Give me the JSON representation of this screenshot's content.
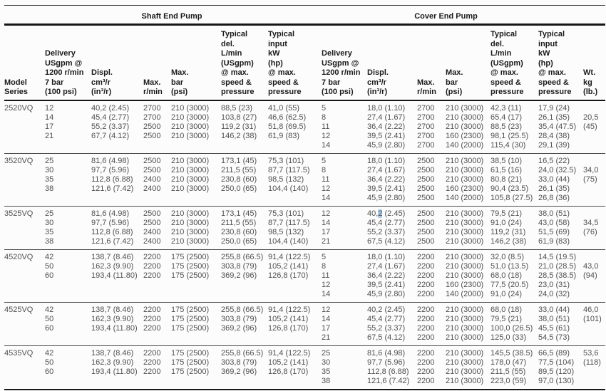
{
  "table": {
    "section_titles": [
      "Shaft End Pump",
      "Cover End Pump"
    ],
    "columns": [
      "Model\nSeries",
      "Delivery\nUSgpm @\n1200 r/min\n7 bar\n(100 psi)",
      "Displ.\ncm³/r\n(in³/r)",
      "Max.\nr/min",
      "Max.\nbar\n(psi)",
      "Typical\ndel.\nL/min\n(USgpm)\n@ max.\nspeed &\npressure",
      "Typical\ninput\nkW\n(hp)\n@ max.\nspeed &\npressure",
      "Delivery\nUSgpm @\n1200 r/min\n7 bar\n(100 psi)",
      "Displ.\ncm³/r\n(in³/r)",
      "Max.\nr/min",
      "Max.\nbar\n(psi)",
      "Typical\ndel.\nL/min\n(USgpm)\n@ max.\nspeed &\npressure",
      "Typical\ninput\nkW\n(hp)\n@ max.\nspeed &\npressure",
      "Wt.\nkg\n(lb.)"
    ],
    "blocks": [
      {
        "model": "2520VQ",
        "rows": [
          [
            "2520VQ",
            "12",
            "40,2 (2.45)",
            "2700",
            "210 (3000)",
            "88,5 (23)",
            "41,0 (55)",
            "5",
            "18,0 (1.10)",
            "2700",
            "210 (3000)",
            "42,3 (11)",
            "17,9 (24)",
            ""
          ],
          [
            "",
            "14",
            "45,4 (2.77)",
            "2700",
            "210 (3000)",
            "103,8 (27)",
            "46,6 (62.5)",
            "8",
            "27,4 (1.67)",
            "2700",
            "210 (3000)",
            "65,4 (17)",
            "26,1 (35)",
            "20,5"
          ],
          [
            "",
            "17",
            "55,2 (3.37)",
            "2500",
            "210 (3000)",
            "119,2 (31)",
            "51,8 (69.5)",
            "11",
            "36,4 (2.22)",
            "2700",
            "210 (3000)",
            "88,5 (23)",
            "35,4 (47.5)",
            "(45)"
          ],
          [
            "",
            "21",
            "67,7 (4.12)",
            "2500",
            "210 (3000)",
            "146,2 (38)",
            "61,9 (83)",
            "12",
            "39,5 (2.41)",
            "2700",
            "160 (2300)",
            "98,1 (25.5)",
            "28,4 (38)",
            ""
          ],
          [
            "",
            "",
            "",
            "",
            "",
            "",
            "",
            "14",
            "45,9 (2.80)",
            "2700",
            "140 (2000)",
            "115,4 (30)",
            "29,1 (39)",
            ""
          ]
        ]
      },
      {
        "model": "3520VQ",
        "rows": [
          [
            "3520VQ",
            "25",
            "81,6 (4.98)",
            "2500",
            "210 (3000)",
            "173,1 (45)",
            "75,3 (101)",
            "5",
            "18,0 (1.10)",
            "2500",
            "210 (3000)",
            "38,5 (10)",
            "16,5 (22)",
            ""
          ],
          [
            "",
            "30",
            "97,7 (5.96)",
            "2500",
            "210 (3000)",
            "211,5 (55)",
            "87,7 (117.5)",
            "8",
            "27,4 (1.67)",
            "2500",
            "210 (3000)",
            "61,5 (16)",
            "24,0 (32.5)",
            "34,0"
          ],
          [
            "",
            "35",
            "112,8 (6.88)",
            "2400",
            "210 (3000)",
            "230,8 (60)",
            "98,5 (132)",
            "11",
            "36,4 (2.22)",
            "2500",
            "210 (3000)",
            "80,8 (21)",
            "33,0 (44)",
            "(75)"
          ],
          [
            "",
            "38",
            "121,6 (7.42)",
            "2400",
            "210 (3000)",
            "250,0 (65)",
            "104,4 (140)",
            "12",
            "39,5 (2.41)",
            "2500",
            "160 (2300)",
            "90,4 (23.5)",
            "26,1 (35)",
            ""
          ],
          [
            "",
            "",
            "",
            "",
            "",
            "",
            "",
            "14",
            "45,9 (2.80)",
            "2500",
            "140 (2000)",
            "105,8 (27.5)",
            "26,8 (36)",
            ""
          ]
        ]
      },
      {
        "model": "3525VQ",
        "rows": [
          [
            "3525VQ",
            "25",
            "81,6 (4.98)",
            "2500",
            "210 (3000)",
            "173,1 (45)",
            "75,3 (101)",
            "12",
            "40,2 (2.45)",
            "2500",
            "210 (3000)",
            "79,5 (21)",
            "38,0 (51)",
            ""
          ],
          [
            "",
            "30",
            "97,7 (5.96)",
            "2500",
            "210 (3000)",
            "211,5 (55)",
            "87,7 (117.5)",
            "14",
            "45,4 (2.77)",
            "2500",
            "210 (3000)",
            "91,0 (24)",
            "43,0 (58)",
            "34,5"
          ],
          [
            "",
            "35",
            "112,8 (6.88)",
            "2400",
            "210 (3000)",
            "230,8 (60)",
            "98,5 (132)",
            "17",
            "55,2 (3.37)",
            "2500",
            "210 (3000)",
            "119,2 (31)",
            "51,5 (69)",
            "(76)"
          ],
          [
            "",
            "38",
            "121,6 (7.42)",
            "2400",
            "210 (3000)",
            "250,0 (65)",
            "104,4 (140)",
            "21",
            "67,5 (4.12)",
            "2500",
            "210 (3000)",
            "146,2 (38)",
            "61,9 (83)",
            ""
          ]
        ]
      },
      {
        "model": "4520VQ",
        "rows": [
          [
            "4520VQ",
            "42",
            "138,7 (8.46)",
            "2200",
            "175 (2500)",
            "255,8 (66.5)",
            "91,4 (122.5)",
            "5",
            "18,0 (1.10)",
            "2200",
            "210 (3000)",
            "32,0 (8.5)",
            "14,5 (19.5)",
            ""
          ],
          [
            "",
            "50",
            "162,3 (9.90)",
            "2200",
            "175 (2500)",
            "303,8 (79)",
            "105,2 (141)",
            "8",
            "27,4 (1.67)",
            "2200",
            "210 (3000)",
            "51,0 (13.5)",
            "21,0 (28.5)",
            "43,0"
          ],
          [
            "",
            "60",
            "193,4 (11.80)",
            "2200",
            "175 (2500)",
            "369,2 (96)",
            "126,8 (170)",
            "11",
            "36,4 (2.22)",
            "2200",
            "210 (3000)",
            "68,0 (18)",
            "28,5 (38.5)",
            "(94)"
          ],
          [
            "",
            "",
            "",
            "",
            "",
            "",
            "",
            "12",
            "39,5 (2.41)",
            "2200",
            "160 (2300)",
            "77,5 (20.5)",
            "23,0 (31)",
            ""
          ],
          [
            "",
            "",
            "",
            "",
            "",
            "",
            "",
            "14",
            "45,9 (2.80)",
            "2200",
            "140 (2000)",
            "91,0 (24)",
            "24,0 (32)",
            ""
          ]
        ]
      },
      {
        "model": "4525VQ",
        "rows": [
          [
            "4525VQ",
            "42",
            "138,7 (8.46)",
            "2200",
            "175 (2500)",
            "255,8 (66.5)",
            "91,4 (122.5)",
            "12",
            "40,2 (2.45)",
            "2200",
            "210 (3000)",
            "68,0 (18)",
            "33,0 (44)",
            "46,0"
          ],
          [
            "",
            "50",
            "162,3 (9.90)",
            "2200",
            "175 (2500)",
            "303,8 (79)",
            "105,2 (141)",
            "14",
            "45,4 (2.77)",
            "2200",
            "210 (3000)",
            "79,5 (21)",
            "38,0 (51)",
            "(101)"
          ],
          [
            "",
            "60",
            "193,4 (11.80)",
            "2200",
            "175 (2500)",
            "369,2 (96)",
            "126,8 (170)",
            "17",
            "55,2 (3.37)",
            "2200",
            "210 (3000)",
            "100,0 (26.5)",
            "45,5 (61)",
            ""
          ],
          [
            "",
            "",
            "",
            "",
            "",
            "",
            "",
            "21",
            "67,5 (4.12)",
            "2200",
            "210 (3000)",
            "125,0 (33)",
            "54,5 (73)",
            ""
          ]
        ]
      },
      {
        "model": "4535VQ",
        "rows": [
          [
            "4535VQ",
            "42",
            "138,7 (8.46)",
            "2200",
            "175 (2500)",
            "255,8 (66.5)",
            "91,4 (122.5)",
            "25",
            "81,6 (4.98)",
            "2200",
            "210 (3000)",
            "145,5 (38.5)",
            "66,5 (89)",
            "53,6"
          ],
          [
            "",
            "50",
            "162,3 (9.90)",
            "2200",
            "175 (2500)",
            "303,8 (79)",
            "105,2 (141)",
            "30",
            "97,7 (5.96)",
            "2200",
            "210 (3000)",
            "178,0 (47)",
            "77,5 (104)",
            "(118)"
          ],
          [
            "",
            "60",
            "193,4 (11.80)",
            "2200",
            "175 (2500)",
            "369,2 (96)",
            "126,8 (170)",
            "35",
            "112,8 (6.88)",
            "2200",
            "210 (3000)",
            "211,5 (55)",
            "89,5 (120)",
            ""
          ],
          [
            "",
            "",
            "",
            "",
            "",
            "",
            "",
            "38",
            "121,6 (7.42)",
            "2200",
            "210 (3000)",
            "223,0 (59)",
            "97,0 (130)",
            ""
          ]
        ]
      }
    ]
  },
  "selection_highlight": {
    "block_index": 2,
    "row_index": 0,
    "cell_index": 8,
    "char_start": 3,
    "char_end": 4,
    "color": "#aecbeb"
  }
}
